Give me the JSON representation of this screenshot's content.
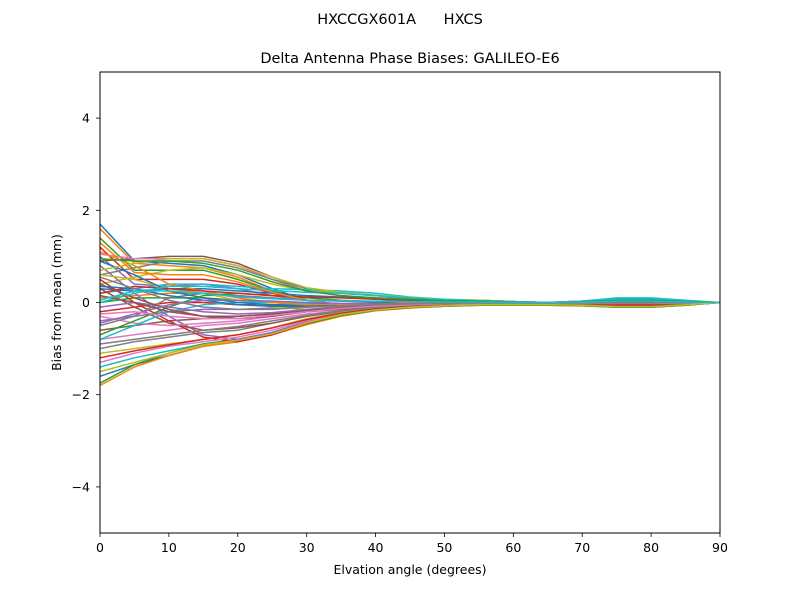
{
  "suptitle": "HXCCGX601A      HXCS",
  "chart_data": {
    "type": "line",
    "title": "Delta Antenna Phase Biases: GALILEO-E6",
    "xlabel": "Elvation angle (degrees)",
    "ylabel": "Bias from mean (mm)",
    "xlim": [
      0,
      90
    ],
    "ylim": [
      -5,
      5
    ],
    "xticks": [
      0,
      10,
      20,
      30,
      40,
      50,
      60,
      70,
      80,
      90
    ],
    "yticks": [
      -4,
      -2,
      0,
      2,
      4
    ],
    "grid": false,
    "legend": "none",
    "x": [
      0,
      5,
      10,
      15,
      20,
      25,
      30,
      35,
      40,
      45,
      50,
      55,
      60,
      65,
      70,
      75,
      80,
      85,
      90
    ],
    "colors": [
      "#1f77b4",
      "#ff7f0e",
      "#2ca02c",
      "#d62728",
      "#9467bd",
      "#8c564b",
      "#e377c2",
      "#7f7f7f",
      "#bcbd22",
      "#17becf"
    ],
    "series": [
      {
        "values": [
          1.7,
          0.9,
          0.85,
          0.8,
          0.6,
          0.3,
          0.05,
          -0.05,
          -0.05,
          0.0,
          0.02,
          0.02,
          0.0,
          -0.02,
          -0.03,
          -0.05,
          -0.05,
          -0.03,
          0.0
        ]
      },
      {
        "values": [
          1.6,
          0.85,
          0.8,
          0.75,
          0.55,
          0.25,
          0.05,
          -0.05,
          -0.05,
          0.0,
          0.02,
          0.02,
          0.0,
          -0.02,
          -0.03,
          -0.05,
          -0.05,
          -0.03,
          0.0
        ]
      },
      {
        "values": [
          1.4,
          0.7,
          0.7,
          0.7,
          0.5,
          0.25,
          0.05,
          -0.05,
          -0.05,
          0.0,
          0.02,
          0.02,
          0.0,
          -0.02,
          -0.03,
          -0.05,
          -0.05,
          -0.03,
          0.0
        ]
      },
      {
        "values": [
          1.2,
          0.5,
          0.5,
          0.5,
          0.4,
          0.2,
          0.05,
          -0.05,
          -0.05,
          0.0,
          0.02,
          0.02,
          0.0,
          -0.02,
          -0.03,
          -0.05,
          -0.05,
          -0.03,
          0.0
        ]
      },
      {
        "values": [
          1.0,
          0.4,
          0.35,
          0.4,
          0.3,
          0.15,
          0.05,
          -0.05,
          -0.05,
          0.0,
          0.02,
          0.02,
          0.0,
          -0.02,
          -0.03,
          -0.05,
          -0.05,
          -0.03,
          0.0
        ]
      },
      {
        "values": [
          0.9,
          0.95,
          1.0,
          1.0,
          0.85,
          0.55,
          0.3,
          0.2,
          0.15,
          0.1,
          0.05,
          0.05,
          0.02,
          0.0,
          0.02,
          0.05,
          0.05,
          0.02,
          0.0
        ]
      },
      {
        "values": [
          1.05,
          0.95,
          0.95,
          0.95,
          0.8,
          0.5,
          0.25,
          0.15,
          0.1,
          0.08,
          0.05,
          0.04,
          0.02,
          0.0,
          0.02,
          0.05,
          0.05,
          0.02,
          0.0
        ]
      },
      {
        "values": [
          0.6,
          0.75,
          0.9,
          0.9,
          0.75,
          0.5,
          0.3,
          0.2,
          0.15,
          0.1,
          0.05,
          0.05,
          0.02,
          0.0,
          0.03,
          0.06,
          0.06,
          0.03,
          0.0
        ]
      },
      {
        "values": [
          0.4,
          0.55,
          0.7,
          0.75,
          0.6,
          0.4,
          0.25,
          0.2,
          0.15,
          0.1,
          0.06,
          0.05,
          0.02,
          0.0,
          0.03,
          0.08,
          0.08,
          0.03,
          0.0
        ]
      },
      {
        "values": [
          0.2,
          0.3,
          0.4,
          0.4,
          0.35,
          0.3,
          0.28,
          0.25,
          0.2,
          0.12,
          0.07,
          0.05,
          0.02,
          0.0,
          0.03,
          0.1,
          0.1,
          0.05,
          0.0
        ]
      },
      {
        "values": [
          0.3,
          0.25,
          0.3,
          0.3,
          0.25,
          0.2,
          0.15,
          0.12,
          0.1,
          0.06,
          0.03,
          0.02,
          0.0,
          0.0,
          0.02,
          0.05,
          0.05,
          0.02,
          0.0
        ]
      },
      {
        "values": [
          0.1,
          0.15,
          0.2,
          0.2,
          0.15,
          0.1,
          0.05,
          0.03,
          0.02,
          0.0,
          -0.01,
          -0.01,
          -0.02,
          -0.02,
          0.0,
          0.03,
          0.03,
          0.01,
          0.0
        ]
      },
      {
        "values": [
          0.0,
          0.1,
          0.1,
          0.1,
          0.05,
          0.0,
          -0.05,
          -0.05,
          -0.05,
          -0.03,
          -0.02,
          -0.02,
          -0.02,
          -0.02,
          0.0,
          0.02,
          0.02,
          0.0,
          0.0
        ]
      },
      {
        "values": [
          -0.2,
          -0.1,
          0.0,
          0.0,
          -0.05,
          -0.05,
          -0.05,
          -0.05,
          -0.05,
          -0.04,
          -0.03,
          -0.03,
          -0.03,
          -0.02,
          0.0,
          0.02,
          0.02,
          0.0,
          0.0
        ]
      },
      {
        "values": [
          -0.4,
          -0.3,
          -0.2,
          -0.15,
          -0.15,
          -0.12,
          -0.1,
          -0.08,
          -0.07,
          -0.05,
          -0.04,
          -0.03,
          -0.03,
          -0.02,
          0.0,
          0.02,
          0.02,
          0.0,
          0.0
        ]
      },
      {
        "values": [
          -0.6,
          -0.5,
          -0.4,
          -0.35,
          -0.3,
          -0.25,
          -0.2,
          -0.15,
          -0.1,
          -0.06,
          -0.04,
          -0.03,
          -0.03,
          -0.02,
          0.0,
          0.02,
          0.02,
          0.0,
          0.0
        ]
      },
      {
        "values": [
          -0.8,
          -0.7,
          -0.6,
          -0.5,
          -0.45,
          -0.35,
          -0.25,
          -0.18,
          -0.12,
          -0.08,
          -0.05,
          -0.04,
          -0.03,
          -0.03,
          -0.02,
          -0.02,
          -0.02,
          -0.01,
          0.0
        ]
      },
      {
        "values": [
          -1.0,
          -0.85,
          -0.75,
          -0.65,
          -0.6,
          -0.45,
          -0.3,
          -0.2,
          -0.13,
          -0.08,
          -0.05,
          -0.04,
          -0.03,
          -0.03,
          -0.02,
          -0.03,
          -0.03,
          -0.02,
          0.0
        ]
      },
      {
        "values": [
          -1.1,
          -1.0,
          -0.9,
          -0.8,
          -0.7,
          -0.55,
          -0.35,
          -0.22,
          -0.14,
          -0.09,
          -0.06,
          -0.05,
          -0.04,
          -0.04,
          -0.03,
          -0.05,
          -0.05,
          -0.03,
          0.0
        ]
      },
      {
        "values": [
          -1.4,
          -1.2,
          -1.05,
          -0.9,
          -0.8,
          -0.65,
          -0.42,
          -0.25,
          -0.15,
          -0.1,
          -0.07,
          -0.05,
          -0.05,
          -0.05,
          -0.05,
          -0.08,
          -0.08,
          -0.05,
          0.0
        ]
      },
      {
        "values": [
          -1.6,
          -1.35,
          -1.15,
          -0.95,
          -0.85,
          -0.7,
          -0.45,
          -0.27,
          -0.17,
          -0.11,
          -0.08,
          -0.06,
          -0.06,
          -0.06,
          -0.07,
          -0.1,
          -0.1,
          -0.06,
          0.0
        ]
      },
      {
        "values": [
          -1.8,
          -1.4,
          -1.15,
          -0.95,
          -0.85,
          -0.7,
          -0.48,
          -0.3,
          -0.18,
          -0.12,
          -0.08,
          -0.06,
          -0.06,
          -0.06,
          -0.07,
          -0.1,
          -0.1,
          -0.06,
          0.0
        ]
      },
      {
        "values": [
          -1.75,
          -1.35,
          -1.1,
          -0.9,
          -0.8,
          -0.68,
          -0.46,
          -0.28,
          -0.17,
          -0.11,
          -0.08,
          -0.06,
          -0.06,
          -0.06,
          -0.07,
          -0.1,
          -0.1,
          -0.06,
          0.0
        ]
      },
      {
        "values": [
          0.5,
          0.0,
          -0.4,
          -0.75,
          -0.85,
          -0.7,
          -0.45,
          -0.25,
          -0.15,
          -0.1,
          -0.07,
          -0.05,
          -0.04,
          -0.04,
          -0.04,
          -0.05,
          -0.05,
          -0.03,
          0.0
        ]
      },
      {
        "values": [
          0.8,
          0.2,
          -0.3,
          -0.7,
          -0.8,
          -0.65,
          -0.42,
          -0.24,
          -0.14,
          -0.09,
          -0.06,
          -0.05,
          -0.04,
          -0.04,
          -0.04,
          -0.05,
          -0.05,
          -0.03,
          0.0
        ]
      },
      {
        "values": [
          0.3,
          -0.1,
          -0.45,
          -0.6,
          -0.55,
          -0.45,
          -0.3,
          -0.18,
          -0.1,
          -0.06,
          -0.04,
          -0.03,
          -0.03,
          -0.03,
          -0.03,
          -0.03,
          -0.03,
          -0.02,
          0.0
        ]
      },
      {
        "values": [
          -0.3,
          -0.45,
          -0.5,
          -0.45,
          -0.4,
          -0.3,
          -0.2,
          -0.12,
          -0.07,
          -0.04,
          -0.03,
          -0.02,
          -0.02,
          -0.02,
          -0.02,
          -0.02,
          -0.02,
          -0.01,
          0.0
        ]
      },
      {
        "values": [
          -0.5,
          -0.3,
          0.1,
          0.2,
          0.15,
          0.1,
          0.05,
          0.03,
          0.0,
          0.0,
          0.0,
          0.0,
          0.0,
          -0.01,
          -0.01,
          -0.02,
          -0.02,
          -0.01,
          0.0
        ]
      },
      {
        "values": [
          0.6,
          0.5,
          0.3,
          0.2,
          0.05,
          -0.1,
          -0.15,
          -0.12,
          -0.08,
          -0.05,
          -0.03,
          -0.02,
          -0.02,
          -0.02,
          -0.02,
          -0.02,
          -0.02,
          -0.01,
          0.0
        ]
      },
      {
        "values": [
          -0.8,
          -0.5,
          -0.2,
          -0.05,
          0.0,
          0.0,
          -0.02,
          -0.03,
          -0.04,
          -0.03,
          -0.02,
          -0.02,
          -0.02,
          -0.02,
          -0.02,
          -0.02,
          -0.02,
          -0.01,
          0.0
        ]
      },
      {
        "values": [
          0.9,
          0.6,
          0.25,
          0.1,
          0.0,
          -0.05,
          -0.05,
          -0.03,
          -0.02,
          -0.01,
          0.0,
          0.0,
          0.0,
          0.0,
          0.0,
          0.02,
          0.02,
          0.01,
          0.0
        ]
      },
      {
        "values": [
          1.1,
          0.8,
          0.4,
          0.25,
          0.1,
          0.0,
          -0.05,
          -0.05,
          -0.04,
          -0.02,
          -0.01,
          0.0,
          0.0,
          0.0,
          0.02,
          0.04,
          0.04,
          0.02,
          0.0
        ]
      },
      {
        "values": [
          -0.7,
          -0.4,
          -0.1,
          0.15,
          0.2,
          0.15,
          0.1,
          0.05,
          0.02,
          0.0,
          0.0,
          0.0,
          0.0,
          0.0,
          0.0,
          0.02,
          0.02,
          0.01,
          0.0
        ]
      },
      {
        "values": [
          0.2,
          0.35,
          0.3,
          0.25,
          0.2,
          0.15,
          0.12,
          0.1,
          0.07,
          0.04,
          0.02,
          0.01,
          0.0,
          0.0,
          0.02,
          0.05,
          0.05,
          0.02,
          0.0
        ]
      },
      {
        "values": [
          -0.1,
          0.0,
          -0.1,
          -0.2,
          -0.25,
          -0.22,
          -0.15,
          -0.1,
          -0.07,
          -0.04,
          -0.03,
          -0.02,
          -0.02,
          -0.02,
          -0.02,
          -0.03,
          -0.03,
          -0.02,
          0.0
        ]
      },
      {
        "values": [
          0.4,
          0.1,
          -0.15,
          -0.3,
          -0.35,
          -0.3,
          -0.2,
          -0.12,
          -0.08,
          -0.05,
          -0.03,
          -0.02,
          -0.02,
          -0.02,
          -0.02,
          -0.03,
          -0.03,
          -0.02,
          0.0
        ]
      },
      {
        "values": [
          -1.3,
          -1.1,
          -0.95,
          -0.85,
          -0.75,
          -0.6,
          -0.4,
          -0.24,
          -0.15,
          -0.1,
          -0.07,
          -0.05,
          -0.05,
          -0.05,
          -0.05,
          -0.07,
          -0.07,
          -0.04,
          0.0
        ]
      },
      {
        "values": [
          -0.9,
          -0.8,
          -0.7,
          -0.6,
          -0.52,
          -0.4,
          -0.28,
          -0.18,
          -0.12,
          -0.08,
          -0.05,
          -0.04,
          -0.03,
          -0.03,
          -0.02,
          -0.03,
          -0.03,
          -0.02,
          0.0
        ]
      },
      {
        "values": [
          0.7,
          0.85,
          0.95,
          0.95,
          0.8,
          0.55,
          0.32,
          0.22,
          0.16,
          0.11,
          0.06,
          0.05,
          0.02,
          0.0,
          0.03,
          0.07,
          0.07,
          0.03,
          0.0
        ]
      },
      {
        "values": [
          0.0,
          0.2,
          0.35,
          0.35,
          0.3,
          0.26,
          0.22,
          0.2,
          0.15,
          0.1,
          0.06,
          0.04,
          0.02,
          0.0,
          0.03,
          0.08,
          0.08,
          0.04,
          0.0
        ]
      },
      {
        "values": [
          0.35,
          0.3,
          0.15,
          0.05,
          -0.05,
          -0.08,
          -0.08,
          -0.06,
          -0.04,
          -0.03,
          -0.02,
          -0.01,
          -0.01,
          -0.01,
          -0.01,
          -0.01,
          -0.01,
          -0.01,
          0.0
        ]
      },
      {
        "values": [
          1.3,
          0.65,
          0.6,
          0.6,
          0.45,
          0.22,
          0.05,
          -0.05,
          -0.05,
          0.0,
          0.02,
          0.02,
          0.0,
          -0.02,
          -0.03,
          -0.05,
          -0.05,
          -0.03,
          0.0
        ]
      },
      {
        "values": [
          0.95,
          0.9,
          0.9,
          0.85,
          0.7,
          0.45,
          0.25,
          0.15,
          0.1,
          0.07,
          0.04,
          0.03,
          0.01,
          0.0,
          0.02,
          0.05,
          0.05,
          0.02,
          0.0
        ]
      },
      {
        "values": [
          -1.2,
          -1.05,
          -0.92,
          -0.8,
          -0.7,
          -0.55,
          -0.37,
          -0.23,
          -0.14,
          -0.09,
          -0.06,
          -0.05,
          -0.04,
          -0.04,
          -0.04,
          -0.06,
          -0.06,
          -0.04,
          0.0
        ]
      },
      {
        "values": [
          -0.45,
          -0.25,
          -0.05,
          0.05,
          0.05,
          0.03,
          0.0,
          -0.02,
          -0.03,
          -0.02,
          -0.02,
          -0.01,
          -0.01,
          -0.01,
          -0.01,
          -0.01,
          -0.01,
          0.0,
          0.0
        ]
      },
      {
        "values": [
          0.15,
          0.0,
          -0.2,
          -0.3,
          -0.3,
          -0.25,
          -0.18,
          -0.12,
          -0.08,
          -0.05,
          -0.03,
          -0.02,
          -0.02,
          -0.02,
          -0.02,
          -0.03,
          -0.03,
          -0.02,
          0.0
        ]
      },
      {
        "values": [
          -0.25,
          -0.2,
          -0.3,
          -0.35,
          -0.35,
          -0.28,
          -0.2,
          -0.13,
          -0.08,
          -0.05,
          -0.03,
          -0.02,
          -0.02,
          -0.02,
          -0.02,
          -0.02,
          -0.02,
          -0.01,
          0.0
        ]
      },
      {
        "values": [
          0.55,
          0.3,
          0.05,
          -0.1,
          -0.15,
          -0.15,
          -0.1,
          -0.07,
          -0.05,
          -0.03,
          -0.02,
          -0.01,
          -0.01,
          -0.01,
          -0.01,
          -0.01,
          -0.01,
          0.0,
          0.0
        ]
      },
      {
        "values": [
          -1.5,
          -1.3,
          -1.1,
          -0.92,
          -0.82,
          -0.68,
          -0.44,
          -0.26,
          -0.16,
          -0.1,
          -0.07,
          -0.05,
          -0.05,
          -0.05,
          -0.06,
          -0.09,
          -0.09,
          -0.05,
          0.0
        ]
      },
      {
        "values": [
          0.05,
          0.25,
          0.25,
          0.2,
          0.12,
          0.08,
          0.05,
          0.04,
          0.03,
          0.02,
          0.01,
          0.01,
          0.0,
          0.0,
          0.01,
          0.03,
          0.03,
          0.01,
          0.0
        ]
      }
    ]
  }
}
